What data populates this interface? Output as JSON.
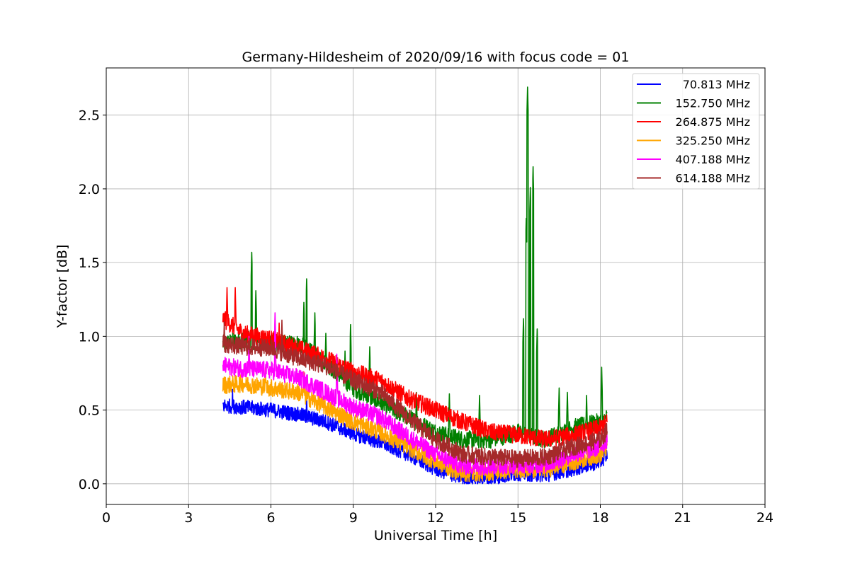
{
  "chart_data": {
    "type": "line",
    "title": "Germany-Hildesheim of 2020/09/16 with focus code = 01",
    "xlabel": "Universal Time [h]",
    "ylabel": "Y-factor [dB]",
    "xlim": [
      0,
      24
    ],
    "ylim": [
      -0.14,
      2.82
    ],
    "x_ticks": [
      0,
      3,
      6,
      9,
      12,
      15,
      18,
      21,
      24
    ],
    "x_tick_labels": [
      "0",
      "3",
      "6",
      "9",
      "12",
      "15",
      "18",
      "21",
      "24"
    ],
    "y_ticks": [
      0.0,
      0.5,
      1.0,
      1.5,
      2.0,
      2.5
    ],
    "y_tick_labels": [
      "0.0",
      "0.5",
      "1.0",
      "1.5",
      "2.0",
      "2.5"
    ],
    "grid": true,
    "legend_position": "top-right",
    "series": [
      {
        "name": " 70.813 MHz",
        "color": "#0000ff",
        "x": [
          4.25,
          5,
          6,
          7,
          8,
          9,
          10,
          11,
          12,
          13,
          14,
          15,
          16,
          17,
          18,
          18.25
        ],
        "y": [
          0.53,
          0.52,
          0.5,
          0.47,
          0.42,
          0.34,
          0.28,
          0.2,
          0.1,
          0.04,
          0.04,
          0.07,
          0.06,
          0.1,
          0.15,
          0.2
        ],
        "noise": 0.05,
        "spikes": [
          [
            4.6,
            0.64
          ],
          [
            7.3,
            0.6
          ]
        ]
      },
      {
        "name": "152.750 MHz",
        "color": "#008000",
        "x": [
          4.25,
          5,
          6,
          7,
          8,
          9,
          10,
          11,
          12,
          13,
          14,
          15,
          16,
          17,
          18,
          18.25
        ],
        "y": [
          0.95,
          0.98,
          0.95,
          0.95,
          0.82,
          0.65,
          0.55,
          0.45,
          0.35,
          0.3,
          0.3,
          0.35,
          0.3,
          0.38,
          0.42,
          0.45
        ],
        "noise": 0.06,
        "spikes": [
          [
            5.3,
            1.57
          ],
          [
            5.45,
            1.31
          ],
          [
            7.2,
            1.23
          ],
          [
            7.3,
            1.39
          ],
          [
            7.6,
            1.16
          ],
          [
            8.0,
            1.02
          ],
          [
            8.7,
            0.9
          ],
          [
            8.9,
            1.08
          ],
          [
            9.6,
            0.93
          ],
          [
            11.3,
            0.62
          ],
          [
            12.5,
            0.61
          ],
          [
            13.6,
            0.6
          ],
          [
            15.2,
            1.12
          ],
          [
            15.3,
            1.8
          ],
          [
            15.35,
            2.69
          ],
          [
            15.45,
            2.01
          ],
          [
            15.55,
            2.15
          ],
          [
            15.7,
            1.05
          ],
          [
            16.5,
            0.65
          ],
          [
            16.8,
            0.62
          ],
          [
            17.5,
            0.6
          ],
          [
            18.05,
            0.79
          ]
        ]
      },
      {
        "name": "264.875 MHz",
        "color": "#ff0000",
        "x": [
          4.25,
          5,
          6,
          7,
          8,
          9,
          10,
          11,
          12,
          13,
          14,
          15,
          16,
          17,
          18,
          18.25
        ],
        "y": [
          1.12,
          1.02,
          0.98,
          0.92,
          0.85,
          0.76,
          0.7,
          0.58,
          0.5,
          0.42,
          0.35,
          0.33,
          0.3,
          0.33,
          0.38,
          0.42
        ],
        "noise": 0.06,
        "spikes": [
          [
            4.4,
            1.33
          ],
          [
            4.7,
            1.33
          ],
          [
            6.3,
            1.09
          ]
        ]
      },
      {
        "name": "325.250 MHz",
        "color": "#ffa500",
        "x": [
          4.25,
          5,
          6,
          7,
          8,
          9,
          10,
          11,
          12,
          13,
          14,
          15,
          16,
          17,
          18,
          18.25
        ],
        "y": [
          0.67,
          0.68,
          0.65,
          0.62,
          0.52,
          0.42,
          0.35,
          0.25,
          0.15,
          0.07,
          0.08,
          0.1,
          0.1,
          0.15,
          0.2,
          0.25
        ],
        "noise": 0.06,
        "spikes": [
          [
            5.8,
            0.79
          ],
          [
            7.2,
            0.76
          ]
        ]
      },
      {
        "name": "407.188 MHz",
        "color": "#ff00ff",
        "x": [
          4.25,
          5,
          6,
          7,
          8,
          9,
          10,
          11,
          12,
          13,
          14,
          15,
          16,
          17,
          18,
          18.25
        ],
        "y": [
          0.8,
          0.78,
          0.77,
          0.72,
          0.62,
          0.52,
          0.45,
          0.32,
          0.2,
          0.12,
          0.12,
          0.13,
          0.13,
          0.2,
          0.25,
          0.3
        ],
        "noise": 0.06,
        "spikes": [
          [
            5.2,
            1.0
          ],
          [
            6.15,
            1.16
          ],
          [
            8.4,
            0.88
          ]
        ]
      },
      {
        "name": "614.188 MHz",
        "color": "#a52a2a",
        "x": [
          4.25,
          5,
          6,
          7,
          8,
          9,
          10,
          11,
          12,
          13,
          14,
          15,
          16,
          17,
          18,
          18.25
        ],
        "y": [
          0.95,
          0.93,
          0.92,
          0.85,
          0.8,
          0.7,
          0.62,
          0.45,
          0.3,
          0.2,
          0.18,
          0.17,
          0.18,
          0.25,
          0.3,
          0.36
        ],
        "noise": 0.06,
        "spikes": [
          [
            4.3,
            1.1
          ],
          [
            6.4,
            1.11
          ]
        ]
      }
    ]
  }
}
